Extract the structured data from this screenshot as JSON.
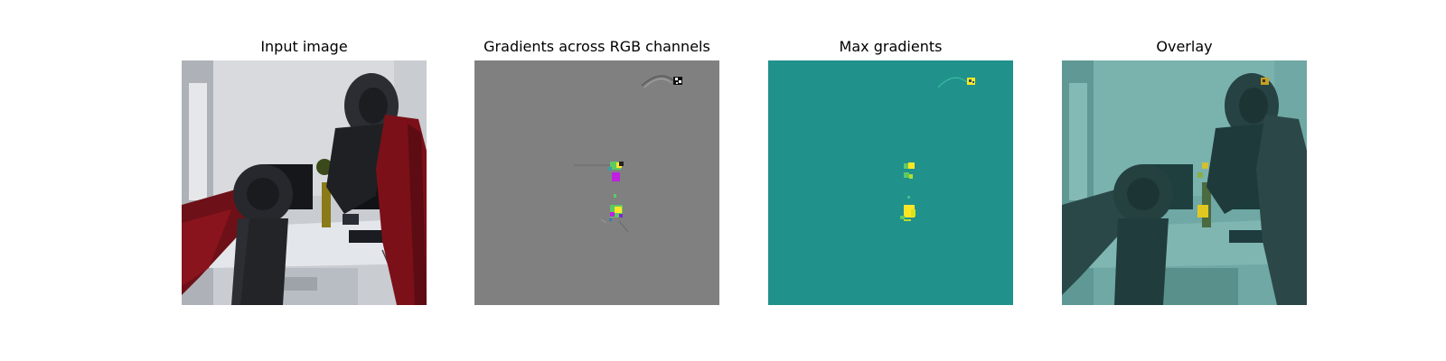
{
  "figure": {
    "panels": [
      {
        "title": "Input image"
      },
      {
        "title": "Gradients across RGB channels"
      },
      {
        "title": "Max gradients"
      },
      {
        "title": "Overlay"
      }
    ]
  },
  "colors": {
    "gray_background": "#808080",
    "teal_background": "#21918c",
    "highlight_yellow": "#fde725",
    "highlight_green": "#5ec962",
    "highlight_magenta": "#c020e0"
  }
}
